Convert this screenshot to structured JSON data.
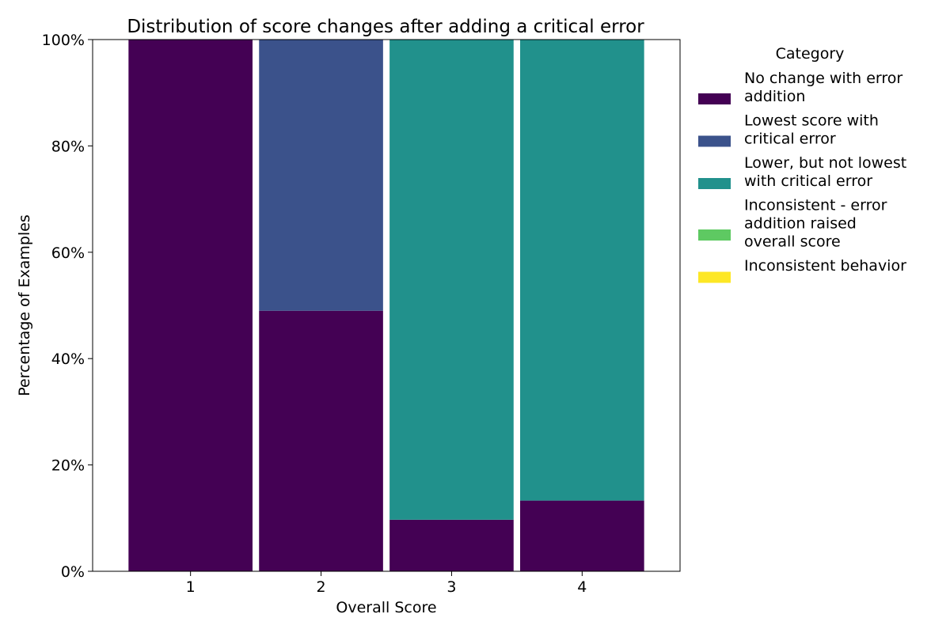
{
  "chart_data": {
    "type": "bar",
    "stacked": true,
    "title": "Distribution of score changes after adding a critical error",
    "xlabel": "Overall Score",
    "ylabel": "Percentage of Examples",
    "categories": [
      "1",
      "2",
      "3",
      "4"
    ],
    "ylim": [
      0,
      100
    ],
    "yticks": [
      "0%",
      "20%",
      "40%",
      "60%",
      "80%",
      "100%"
    ],
    "ytick_values": [
      0,
      20,
      40,
      60,
      80,
      100
    ],
    "grid": false,
    "legend_position": "right",
    "legend_title": "Category",
    "series": [
      {
        "name": "No change with error addition",
        "legend_lines": [
          "No change with error",
          "addition"
        ],
        "color": "#440154",
        "values": [
          100,
          49,
          9.7,
          13.3
        ]
      },
      {
        "name": "Lowest score with critical error",
        "legend_lines": [
          "Lowest score with",
          "critical error"
        ],
        "color": "#3b528b",
        "values": [
          0,
          51,
          0,
          0
        ]
      },
      {
        "name": "Lower, but not lowest with critical error",
        "legend_lines": [
          "Lower, but not lowest",
          "with critical error"
        ],
        "color": "#21918c",
        "values": [
          0,
          0,
          90.3,
          86.7
        ]
      },
      {
        "name": "Inconsistent - error addition raised overall score",
        "legend_lines": [
          "Inconsistent - error",
          "addition raised",
          "overall score"
        ],
        "color": "#5ec962",
        "values": [
          0,
          0,
          0,
          0
        ]
      },
      {
        "name": "Inconsistent behavior",
        "legend_lines": [
          "Inconsistent behavior"
        ],
        "color": "#fde725",
        "values": [
          0,
          0,
          0,
          0
        ]
      }
    ]
  }
}
